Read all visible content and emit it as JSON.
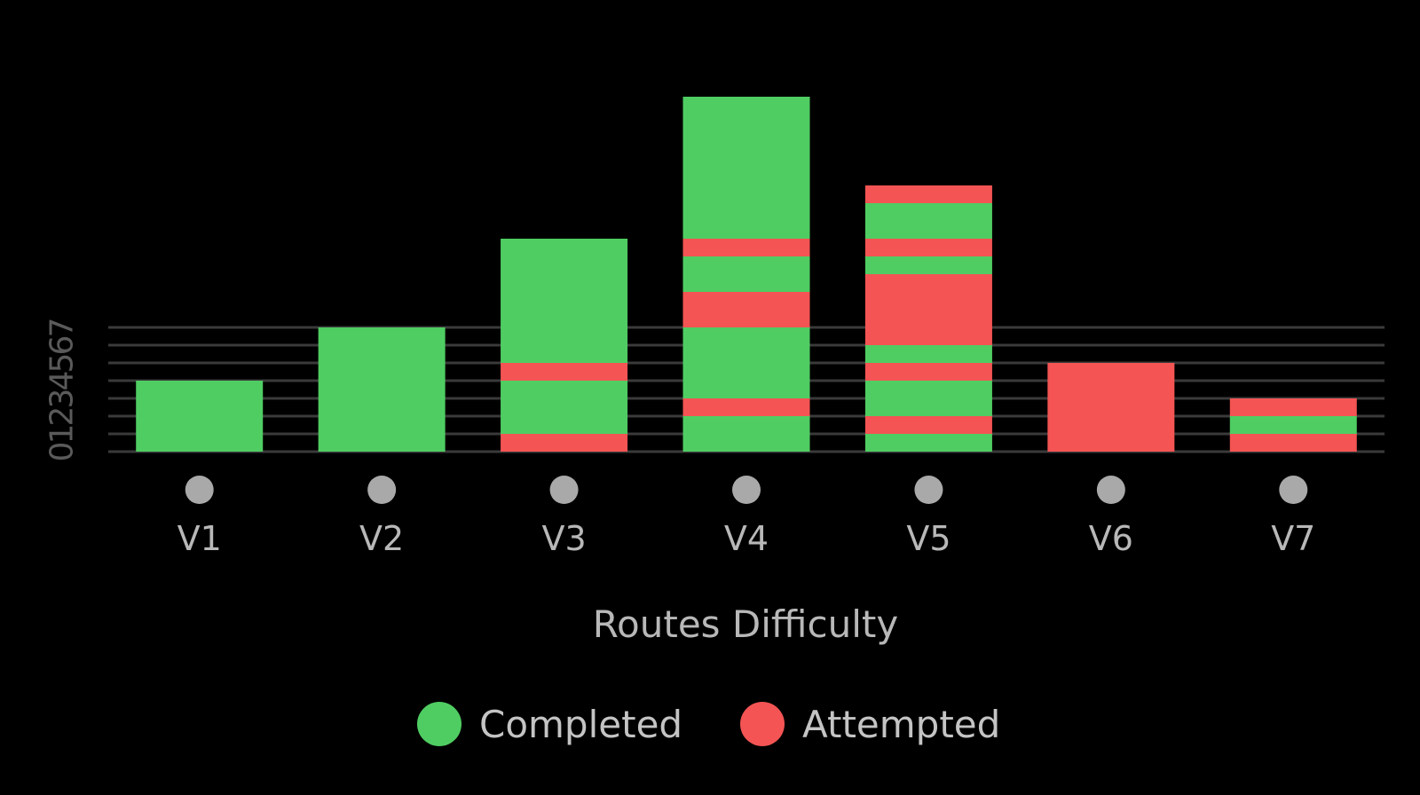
{
  "chart_data": {
    "type": "bar",
    "stacked": true,
    "xlabel": "Routes Difficulty",
    "ylabel": "",
    "ylim": [
      0,
      7
    ],
    "yticks": [
      "0",
      "1",
      "2",
      "3",
      "4",
      "5",
      "6",
      "7"
    ],
    "grid": true,
    "legend_placement": "bottom-center",
    "categories": [
      "V1",
      "V2",
      "V3",
      "V4",
      "V5",
      "V6",
      "V7"
    ],
    "series": [
      {
        "name": "Completed",
        "color": "#4fcd62"
      },
      {
        "name": "Attempted",
        "color": "#f45454"
      }
    ],
    "category_marker_color": "#a9a9a9",
    "segments": [
      [
        [
          "Completed",
          4
        ]
      ],
      [
        [
          "Completed",
          7
        ]
      ],
      [
        [
          "Attempted",
          1
        ],
        [
          "Completed",
          3
        ],
        [
          "Attempted",
          1
        ],
        [
          "Completed",
          7
        ]
      ],
      [
        [
          "Completed",
          2
        ],
        [
          "Attempted",
          1
        ],
        [
          "Completed",
          4
        ],
        [
          "Attempted",
          2
        ],
        [
          "Completed",
          2
        ],
        [
          "Attempted",
          1
        ],
        [
          "Completed",
          8
        ]
      ],
      [
        [
          "Completed",
          1
        ],
        [
          "Attempted",
          1
        ],
        [
          "Completed",
          2
        ],
        [
          "Attempted",
          1
        ],
        [
          "Completed",
          1
        ],
        [
          "Attempted",
          4
        ],
        [
          "Completed",
          1
        ],
        [
          "Attempted",
          1
        ],
        [
          "Completed",
          2
        ],
        [
          "Attempted",
          1
        ]
      ],
      [
        [
          "Attempted",
          5
        ]
      ],
      [
        [
          "Attempted",
          1
        ],
        [
          "Completed",
          1
        ],
        [
          "Attempted",
          1
        ]
      ]
    ]
  }
}
